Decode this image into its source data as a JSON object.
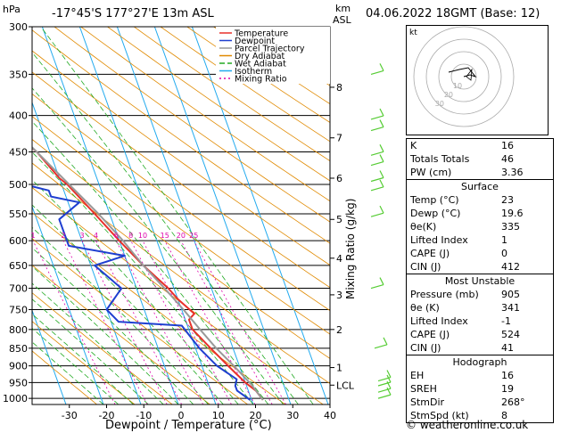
{
  "header": {
    "hpa_label": "hPa",
    "location": "-17°45'S  177°27'E  13m  ASL",
    "km_label": "km",
    "asl_label": "ASL",
    "datetime": "04.06.2022  18GMT  (Base: 12)"
  },
  "legend": [
    "Temperature",
    "Dewpoint",
    "Parcel Trajectory",
    "Dry Adiabat",
    "Wet Adiabat",
    "Isotherm",
    "Mixing Ratio"
  ],
  "colors": {
    "temperature": "#e8302a",
    "dewpoint": "#1f3fd0",
    "parcel": "#999999",
    "dry_adiabat": "#e08a00",
    "wet_adiabat": "#22aa22",
    "isotherm": "#22aaee",
    "mixing_ratio": "#dd00aa",
    "wind": "#55cc33"
  },
  "chart_data": {
    "type": "line",
    "xlabel": "Dewpoint / Temperature (°C)",
    "ylabel": "Mixing Ratio (g/kg)",
    "pressure_ticks": [
      300,
      350,
      400,
      450,
      500,
      550,
      600,
      650,
      700,
      750,
      800,
      850,
      900,
      950,
      1000
    ],
    "temperature_ticks": [
      -30,
      -20,
      -10,
      0,
      10,
      20,
      30,
      40
    ],
    "km_ticks": [
      {
        "label": "8",
        "p": 365
      },
      {
        "label": "7",
        "p": 430
      },
      {
        "label": "6",
        "p": 490
      },
      {
        "label": "5",
        "p": 560
      },
      {
        "label": "4",
        "p": 635
      },
      {
        "label": "3",
        "p": 715
      },
      {
        "label": "2",
        "p": 800
      },
      {
        "label": "1",
        "p": 905
      },
      {
        "label": "LCL",
        "p": 958
      }
    ],
    "mixing_ratio_labels": [
      "1",
      "2",
      "3",
      "4",
      "6",
      "8",
      "10",
      "15",
      "20",
      "25"
    ],
    "mixing_ratio_values": [
      1,
      2,
      3,
      4,
      6,
      8,
      10,
      15,
      20,
      25
    ],
    "series": [
      {
        "name": "Temperature",
        "p": [
          1005,
          975,
          950,
          925,
          900,
          850,
          800,
          775,
          760,
          725,
          700,
          650,
          600,
          550,
          500,
          490,
          450,
          400,
          350,
          300
        ],
        "t": [
          23,
          22,
          20,
          18.5,
          17,
          14,
          11,
          11,
          13,
          10,
          8.5,
          4,
          0,
          -4,
          -8.5,
          -10,
          -13.5,
          -21,
          -29,
          -38
        ]
      },
      {
        "name": "Dewpoint",
        "p": [
          1005,
          975,
          960,
          940,
          900,
          850,
          790,
          780,
          750,
          700,
          650,
          630,
          610,
          560,
          530,
          520,
          510,
          500,
          480,
          460,
          430,
          400,
          380,
          360,
          350,
          300
        ],
        "t": [
          19.6,
          17,
          17,
          18,
          14,
          11,
          8.5,
          -8,
          -10,
          -4,
          -9,
          0,
          -14,
          -14,
          -7,
          -14,
          -14,
          -20,
          -17,
          -26,
          -28,
          -21,
          -24,
          -19,
          -25,
          -35
        ]
      },
      {
        "name": "Parcel Trajectory",
        "p": [
          1005,
          958,
          900,
          850,
          800,
          750,
          700,
          650,
          600,
          550,
          500,
          450,
          400,
          350,
          300
        ],
        "t": [
          23,
          21.5,
          18.5,
          15.5,
          13,
          10.5,
          7.5,
          4,
          1,
          -3,
          -8,
          -13.5,
          -20,
          -28,
          -37
        ]
      }
    ],
    "wind_barbs": [
      1000,
      980,
      960,
      945,
      850,
      700,
      555,
      510,
      495,
      470,
      455,
      420,
      405,
      350
    ]
  },
  "indices": [
    {
      "k": "K",
      "v": "16"
    },
    {
      "k": "Totals Totals",
      "v": "46"
    },
    {
      "k": "PW (cm)",
      "v": "3.36"
    }
  ],
  "surface": {
    "title": "Surface",
    "rows": [
      {
        "k": "Temp (°C)",
        "v": "23"
      },
      {
        "k": "Dewp (°C)",
        "v": "19.6"
      },
      {
        "k": "θe(K)",
        "v": "335"
      },
      {
        "k": "Lifted Index",
        "v": "1"
      },
      {
        "k": "CAPE (J)",
        "v": "0"
      },
      {
        "k": "CIN (J)",
        "v": "412"
      }
    ]
  },
  "unstable": {
    "title": "Most Unstable",
    "rows": [
      {
        "k": "Pressure (mb)",
        "v": "905"
      },
      {
        "k": "θe (K)",
        "v": "341"
      },
      {
        "k": "Lifted Index",
        "v": "-1"
      },
      {
        "k": "CAPE (J)",
        "v": "524"
      },
      {
        "k": "CIN (J)",
        "v": "41"
      }
    ]
  },
  "hodograph": {
    "title": "Hodograph",
    "kt_label": "kt",
    "ring_labels": [
      "10",
      "20",
      "30"
    ],
    "rows": [
      {
        "k": "EH",
        "v": "16"
      },
      {
        "k": "SREH",
        "v": "19"
      },
      {
        "k": "StmDir",
        "v": "268°"
      },
      {
        "k": "StmSpd (kt)",
        "v": "8"
      }
    ]
  },
  "credit": "© weatheronline.co.uk"
}
